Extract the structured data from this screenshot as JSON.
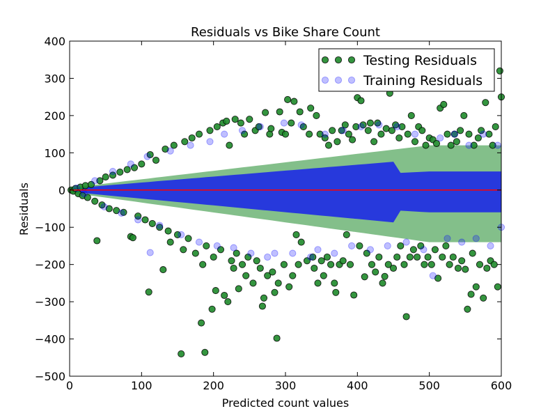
{
  "chart_data": {
    "type": "scatter",
    "title": "Residuals vs Bike Share Count",
    "xlabel": "Predicted count values",
    "ylabel": "Residuals",
    "xlim": [
      0,
      600
    ],
    "ylim": [
      -500,
      400
    ],
    "x_ticks": [
      "0",
      "100",
      "200",
      "300",
      "400",
      "500",
      "600"
    ],
    "y_ticks": [
      "400",
      "300",
      "200",
      "100",
      "0",
      "−100",
      "−200",
      "−300",
      "−400",
      "−500"
    ],
    "x_tick_values": [
      0,
      100,
      200,
      300,
      400,
      500,
      600
    ],
    "y_tick_values": [
      400,
      300,
      200,
      100,
      0,
      -100,
      -200,
      -300,
      -400,
      -500
    ],
    "grid": false,
    "legend_position": "top-right",
    "hline": {
      "y": 0,
      "color": "#ff0000"
    },
    "series": [
      {
        "name": "Testing Residuals",
        "color": "#1e8a2a",
        "alpha": 0.9,
        "points": [
          [
            2,
            0
          ],
          [
            5,
            -3
          ],
          [
            8,
            4
          ],
          [
            12,
            -10
          ],
          [
            15,
            8
          ],
          [
            18,
            -15
          ],
          [
            22,
            12
          ],
          [
            25,
            -20
          ],
          [
            30,
            15
          ],
          [
            35,
            -30
          ],
          [
            38,
            -136
          ],
          [
            42,
            25
          ],
          [
            45,
            -40
          ],
          [
            50,
            35
          ],
          [
            55,
            -50
          ],
          [
            60,
            40
          ],
          [
            65,
            -55
          ],
          [
            70,
            48
          ],
          [
            75,
            -60
          ],
          [
            80,
            55
          ],
          [
            85,
            -125
          ],
          [
            88,
            -128
          ],
          [
            90,
            60
          ],
          [
            95,
            -70
          ],
          [
            100,
            70
          ],
          [
            105,
            -80
          ],
          [
            110,
            -274
          ],
          [
            112,
            95
          ],
          [
            115,
            -90
          ],
          [
            120,
            80
          ],
          [
            125,
            -100
          ],
          [
            130,
            -214
          ],
          [
            133,
            110
          ],
          [
            137,
            -110
          ],
          [
            140,
            -140
          ],
          [
            145,
            120
          ],
          [
            150,
            -120
          ],
          [
            155,
            -440
          ],
          [
            158,
            -160
          ],
          [
            160,
            130
          ],
          [
            165,
            -130
          ],
          [
            170,
            140
          ],
          [
            175,
            -170
          ],
          [
            180,
            150
          ],
          [
            183,
            -357
          ],
          [
            185,
            -200
          ],
          [
            188,
            -436
          ],
          [
            190,
            -150
          ],
          [
            195,
            160
          ],
          [
            198,
            -320
          ],
          [
            200,
            -180
          ],
          [
            203,
            -270
          ],
          [
            205,
            170
          ],
          [
            210,
            -160
          ],
          [
            213,
            180
          ],
          [
            215,
            -283
          ],
          [
            218,
            185
          ],
          [
            220,
            -300
          ],
          [
            222,
            120
          ],
          [
            225,
            -190
          ],
          [
            228,
            -210
          ],
          [
            230,
            190
          ],
          [
            232,
            -170
          ],
          [
            235,
            -265
          ],
          [
            238,
            180
          ],
          [
            240,
            -200
          ],
          [
            243,
            150
          ],
          [
            245,
            -230
          ],
          [
            248,
            -180
          ],
          [
            250,
            190
          ],
          [
            255,
            -250
          ],
          [
            258,
            160
          ],
          [
            260,
            -190
          ],
          [
            263,
            170
          ],
          [
            265,
            -210
          ],
          [
            268,
            -312
          ],
          [
            270,
            -290
          ],
          [
            272,
            208
          ],
          [
            275,
            -230
          ],
          [
            278,
            150
          ],
          [
            280,
            165
          ],
          [
            282,
            -220
          ],
          [
            285,
            -275
          ],
          [
            288,
            -398
          ],
          [
            290,
            -250
          ],
          [
            292,
            210
          ],
          [
            295,
            155
          ],
          [
            298,
            -200
          ],
          [
            300,
            150
          ],
          [
            303,
            243
          ],
          [
            305,
            -260
          ],
          [
            308,
            180
          ],
          [
            310,
            -230
          ],
          [
            312,
            238
          ],
          [
            315,
            -120
          ],
          [
            318,
            -200
          ],
          [
            320,
            210
          ],
          [
            322,
            -140
          ],
          [
            325,
            170
          ],
          [
            330,
            -190
          ],
          [
            333,
            150
          ],
          [
            335,
            220
          ],
          [
            338,
            -180
          ],
          [
            340,
            -210
          ],
          [
            343,
            200
          ],
          [
            345,
            -250
          ],
          [
            348,
            150
          ],
          [
            350,
            -190
          ],
          [
            353,
            -230
          ],
          [
            355,
            140
          ],
          [
            358,
            -180
          ],
          [
            360,
            120
          ],
          [
            363,
            -200
          ],
          [
            365,
            160
          ],
          [
            368,
            -250
          ],
          [
            370,
            -275
          ],
          [
            372,
            130
          ],
          [
            375,
            -200
          ],
          [
            378,
            160
          ],
          [
            380,
            -190
          ],
          [
            383,
            175
          ],
          [
            385,
            -120
          ],
          [
            388,
            150
          ],
          [
            390,
            -200
          ],
          [
            393,
            135
          ],
          [
            395,
            -282
          ],
          [
            398,
            170
          ],
          [
            400,
            248
          ],
          [
            403,
            -150
          ],
          [
            405,
            240
          ],
          [
            408,
            175
          ],
          [
            410,
            -233
          ],
          [
            413,
            -170
          ],
          [
            415,
            160
          ],
          [
            418,
            180
          ],
          [
            420,
            -200
          ],
          [
            423,
            130
          ],
          [
            425,
            -220
          ],
          [
            428,
            180
          ],
          [
            430,
            -180
          ],
          [
            433,
            150
          ],
          [
            435,
            -250
          ],
          [
            438,
            -232
          ],
          [
            440,
            165
          ],
          [
            443,
            -200
          ],
          [
            445,
            260
          ],
          [
            448,
            160
          ],
          [
            450,
            -210
          ],
          [
            453,
            175
          ],
          [
            455,
            -180
          ],
          [
            458,
            140
          ],
          [
            460,
            -150
          ],
          [
            462,
            170
          ],
          [
            465,
            -200
          ],
          [
            468,
            -340
          ],
          [
            470,
            150
          ],
          [
            473,
            -180
          ],
          [
            475,
            200
          ],
          [
            478,
            -160
          ],
          [
            480,
            130
          ],
          [
            483,
            -180
          ],
          [
            485,
            170
          ],
          [
            488,
            -150
          ],
          [
            490,
            160
          ],
          [
            493,
            -200
          ],
          [
            495,
            120
          ],
          [
            498,
            -180
          ],
          [
            500,
            140
          ],
          [
            503,
            -200
          ],
          [
            505,
            135
          ],
          [
            508,
            -160
          ],
          [
            510,
            125
          ],
          [
            512,
            -237
          ],
          [
            515,
            220
          ],
          [
            518,
            -180
          ],
          [
            520,
            230
          ],
          [
            523,
            -150
          ],
          [
            525,
            150
          ],
          [
            528,
            -200
          ],
          [
            530,
            120
          ],
          [
            533,
            -180
          ],
          [
            535,
            150
          ],
          [
            538,
            130
          ],
          [
            540,
            -210
          ],
          [
            543,
            160
          ],
          [
            545,
            -190
          ],
          [
            548,
            200
          ],
          [
            550,
            -213
          ],
          [
            553,
            -320
          ],
          [
            555,
            150
          ],
          [
            558,
            -280
          ],
          [
            560,
            -170
          ],
          [
            562,
            120
          ],
          [
            565,
            -260
          ],
          [
            568,
            140
          ],
          [
            570,
            -200
          ],
          [
            572,
            160
          ],
          [
            575,
            -290
          ],
          [
            578,
            235
          ],
          [
            580,
            -210
          ],
          [
            583,
            150
          ],
          [
            585,
            -190
          ],
          [
            588,
            120
          ],
          [
            590,
            -200
          ],
          [
            592,
            170
          ],
          [
            595,
            -260
          ],
          [
            598,
            320
          ],
          [
            600,
            250
          ]
        ]
      },
      {
        "name": "Training Residuals",
        "color": "#0000ff",
        "alpha": 0.25,
        "points": [
          [
            10,
            5
          ],
          [
            20,
            -10
          ],
          [
            35,
            25
          ],
          [
            48,
            -45
          ],
          [
            60,
            50
          ],
          [
            72,
            -62
          ],
          [
            85,
            70
          ],
          [
            95,
            -80
          ],
          [
            108,
            90
          ],
          [
            112,
            -168
          ],
          [
            125,
            -95
          ],
          [
            140,
            105
          ],
          [
            155,
            -120
          ],
          [
            168,
            120
          ],
          [
            180,
            -140
          ],
          [
            195,
            130
          ],
          [
            205,
            -150
          ],
          [
            215,
            150
          ],
          [
            228,
            -155
          ],
          [
            240,
            160
          ],
          [
            252,
            -170
          ],
          [
            265,
            170
          ],
          [
            275,
            -180
          ],
          [
            285,
            -170
          ],
          [
            298,
            180
          ],
          [
            310,
            -170
          ],
          [
            322,
            175
          ],
          [
            335,
            -180
          ],
          [
            345,
            -160
          ],
          [
            355,
            150
          ],
          [
            368,
            -170
          ],
          [
            380,
            160
          ],
          [
            392,
            -150
          ],
          [
            405,
            170
          ],
          [
            418,
            -160
          ],
          [
            430,
            175
          ],
          [
            442,
            -150
          ],
          [
            455,
            170
          ],
          [
            468,
            -140
          ],
          [
            480,
            150
          ],
          [
            492,
            -160
          ],
          [
            505,
            -230
          ],
          [
            515,
            140
          ],
          [
            525,
            -130
          ],
          [
            535,
            150
          ],
          [
            545,
            -140
          ],
          [
            555,
            120
          ],
          [
            565,
            -130
          ],
          [
            575,
            150
          ],
          [
            585,
            -150
          ],
          [
            595,
            120
          ],
          [
            600,
            -100
          ]
        ]
      }
    ]
  }
}
